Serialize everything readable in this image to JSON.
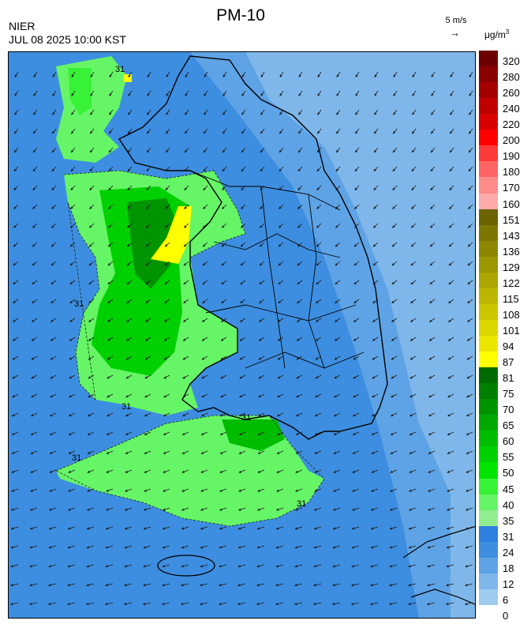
{
  "header": {
    "title": "PM-10",
    "agency": "NIER",
    "datetime": "JUL 08 2025 10:00 KST",
    "wind_reference": "5 m/s",
    "wind_arrow": "→",
    "unit_base": "μg/m",
    "unit_exp": "3"
  },
  "map": {
    "contour_label": "31",
    "background_color": "#3d8ee0",
    "land_boundary_color": "#000000",
    "wind_direction": "mostly from the north-east toward the south-west",
    "wind_arrow_color": "#1a1a1a"
  },
  "legend": {
    "ticks": [
      "320",
      "280",
      "260",
      "240",
      "220",
      "200",
      "190",
      "180",
      "170",
      "160",
      "151",
      "143",
      "136",
      "129",
      "122",
      "115",
      "108",
      "101",
      "94",
      "87",
      "81",
      "75",
      "70",
      "65",
      "60",
      "55",
      "50",
      "45",
      "40",
      "35",
      "31",
      "24",
      "18",
      "12",
      "6",
      "0"
    ],
    "colors": [
      "#6d0000",
      "#8b0000",
      "#a50000",
      "#c00000",
      "#d80000",
      "#ff0000",
      "#ff3a3a",
      "#ff6464",
      "#ff8a8a",
      "#ffaaaa",
      "#6b6400",
      "#7d7600",
      "#8c8600",
      "#9c9600",
      "#aca600",
      "#bcb600",
      "#ccc600",
      "#dcd600",
      "#ece600",
      "#ffff00",
      "#006b00",
      "#008000",
      "#009400",
      "#00a800",
      "#00bc00",
      "#00d000",
      "#00e400",
      "#38f238",
      "#66f566",
      "#90ee90",
      "#2d7fe0",
      "#3d8ee0",
      "#5ea3e6",
      "#7fb7ea",
      "#9ecbee"
    ]
  }
}
